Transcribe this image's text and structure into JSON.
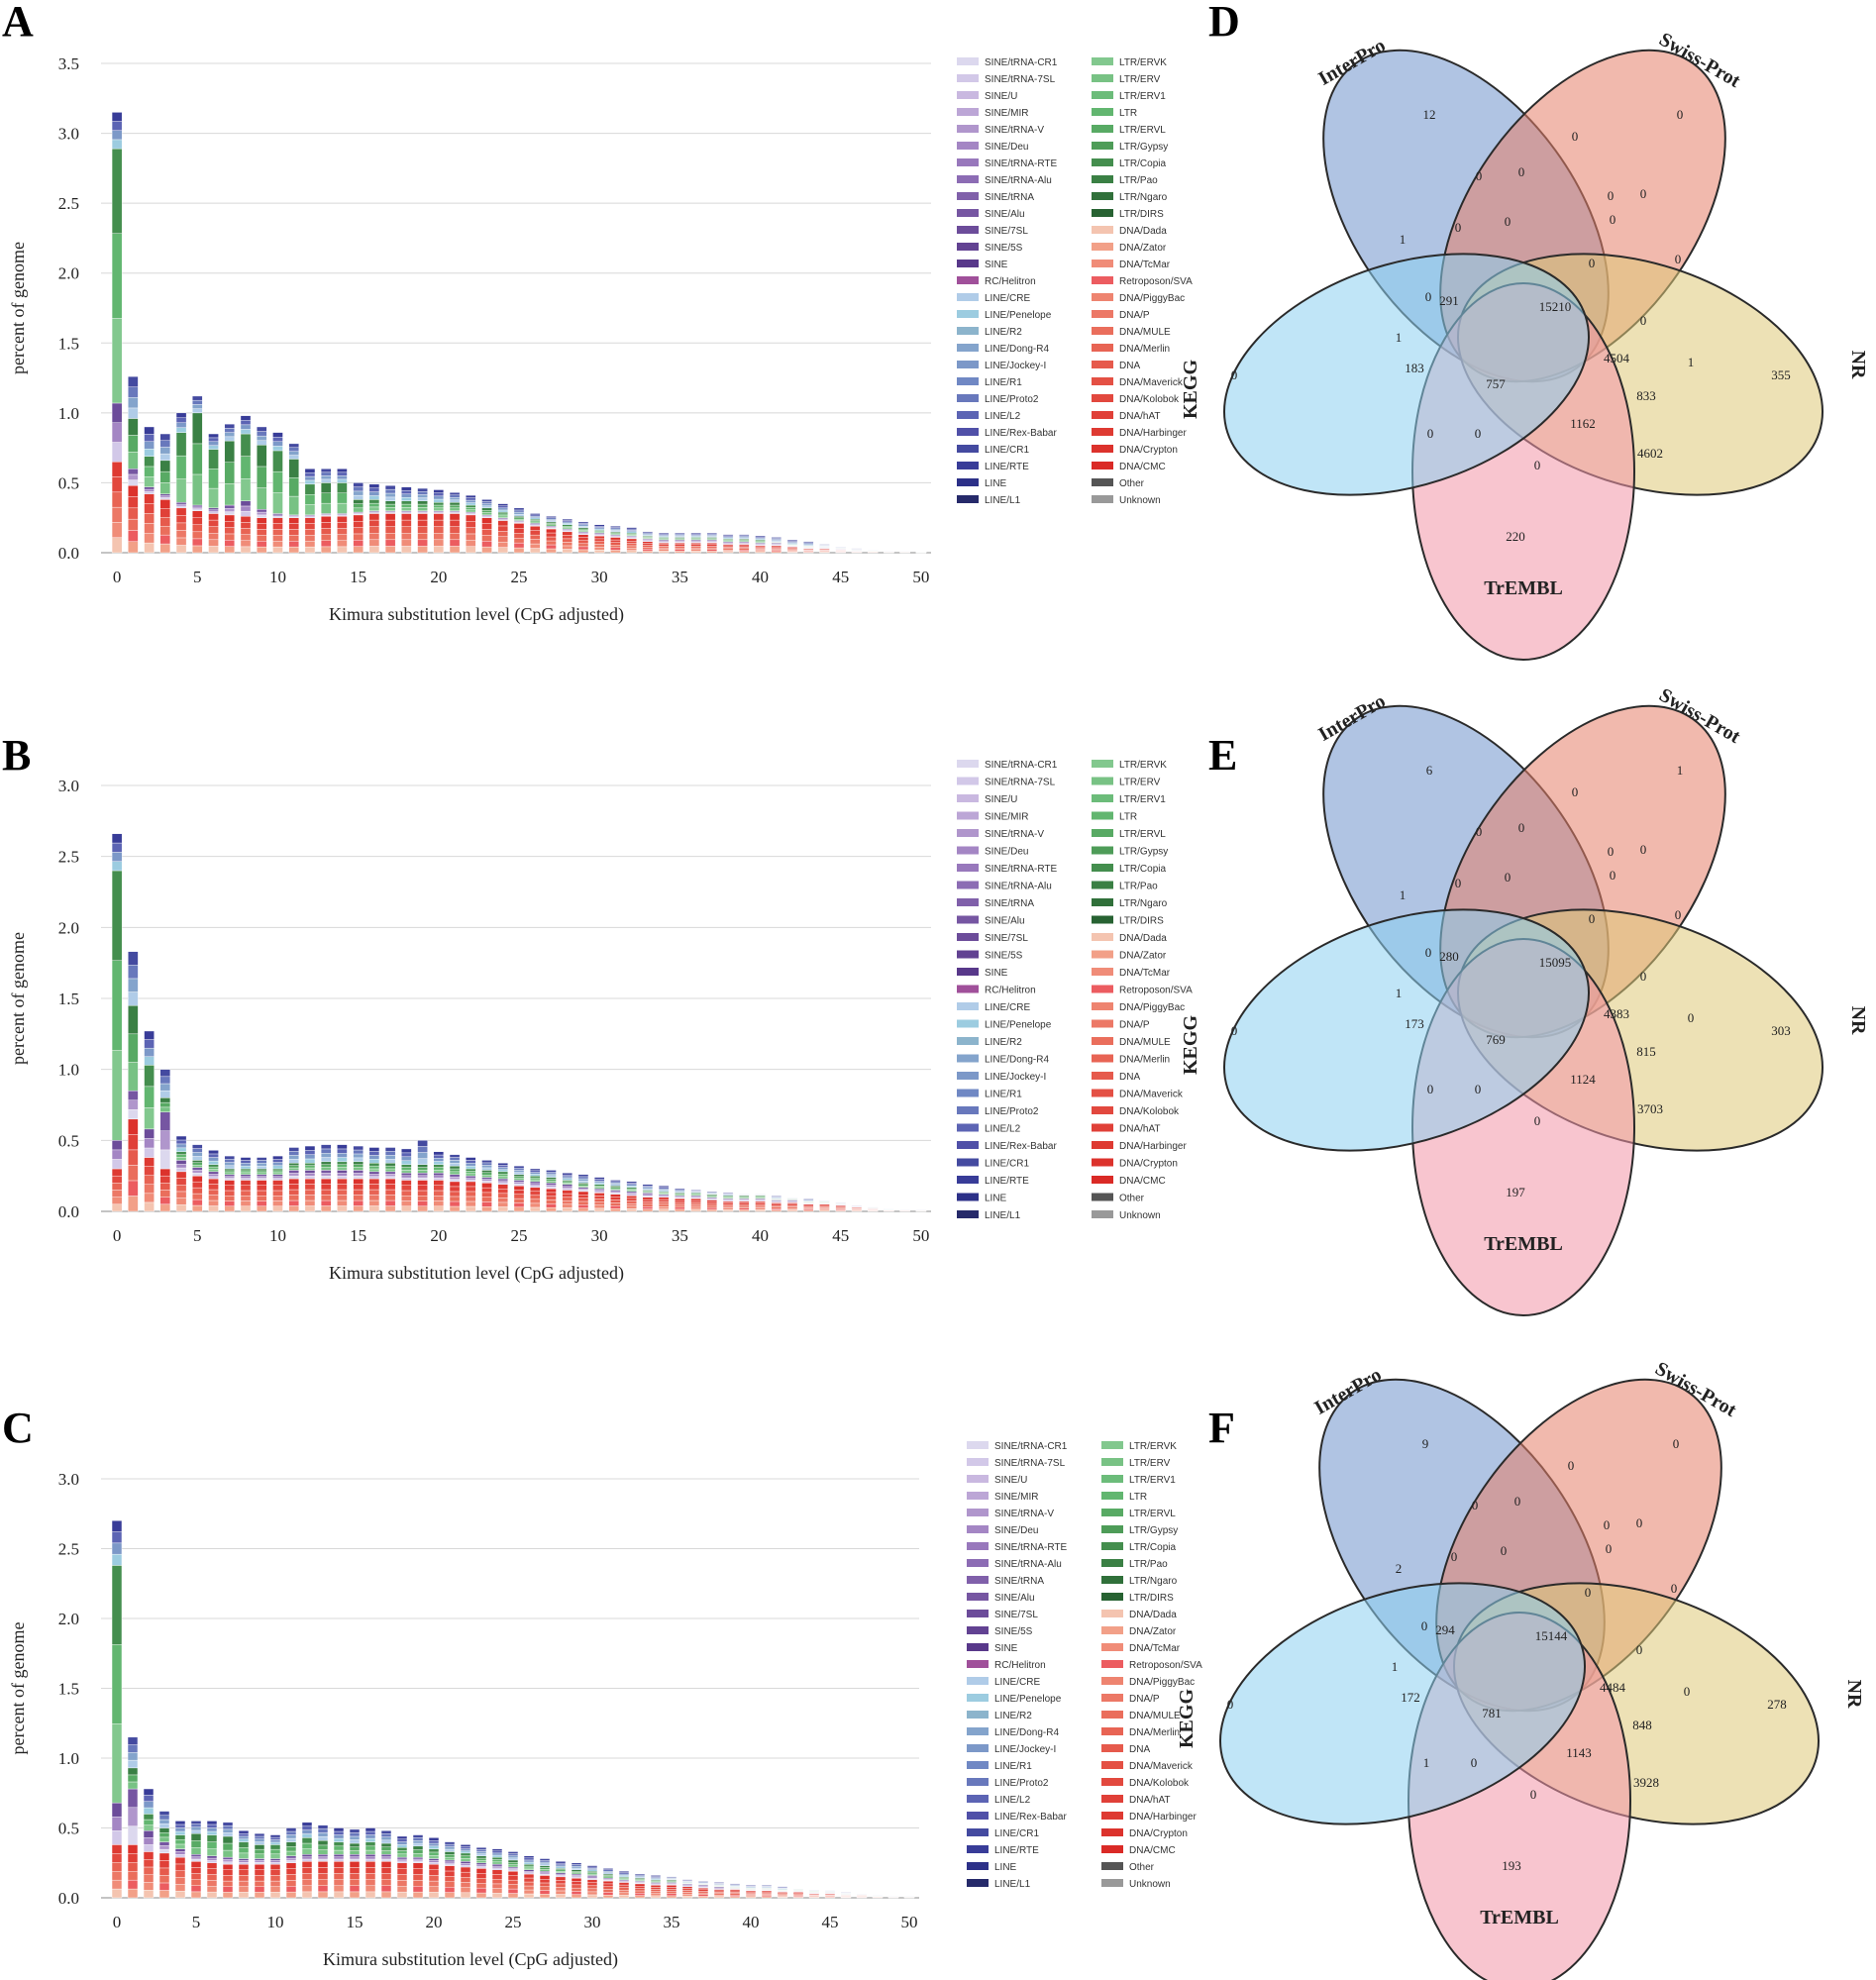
{
  "chart_data": [
    {
      "panel": "A",
      "type": "bar",
      "stacked": true,
      "ylabel": "percent of genome",
      "xlabel": "Kimura substitution level (CpG adjusted)",
      "ylim": [
        0,
        3.5
      ],
      "yticks": [
        "0.0",
        "0.5",
        "1.0",
        "1.5",
        "2.0",
        "2.5",
        "3.0",
        "3.5"
      ],
      "xticks": [
        "0",
        "5",
        "10",
        "15",
        "20",
        "25",
        "30",
        "35",
        "40",
        "45",
        "50"
      ],
      "totals": [
        3.15,
        1.26,
        0.9,
        0.85,
        1.0,
        1.12,
        0.85,
        0.92,
        0.98,
        0.9,
        0.86,
        0.78,
        0.6,
        0.6,
        0.6,
        0.5,
        0.49,
        0.48,
        0.47,
        0.46,
        0.45,
        0.43,
        0.41,
        0.38,
        0.35,
        0.32,
        0.28,
        0.26,
        0.24,
        0.22,
        0.2,
        0.19,
        0.18,
        0.15,
        0.14,
        0.14,
        0.14,
        0.14,
        0.13,
        0.13,
        0.12,
        0.11,
        0.09,
        0.08,
        0.06,
        0.04,
        0.03,
        0.02,
        0.01,
        0.01,
        0.005
      ],
      "dna": [
        0.65,
        0.48,
        0.42,
        0.38,
        0.32,
        0.3,
        0.28,
        0.27,
        0.26,
        0.25,
        0.25,
        0.25,
        0.25,
        0.26,
        0.26,
        0.27,
        0.28,
        0.28,
        0.28,
        0.28,
        0.28,
        0.28,
        0.27,
        0.25,
        0.23,
        0.21,
        0.19,
        0.17,
        0.15,
        0.13,
        0.12,
        0.11,
        0.1,
        0.08,
        0.07,
        0.07,
        0.07,
        0.07,
        0.06,
        0.06,
        0.05,
        0.05,
        0.04,
        0.03,
        0.03,
        0.02,
        0.01,
        0.01,
        0.005,
        0.005,
        0.002
      ],
      "sine": [
        0.42,
        0.12,
        0.05,
        0.04,
        0.04,
        0.04,
        0.04,
        0.07,
        0.11,
        0.06,
        0.03,
        0.02,
        0.02,
        0.02,
        0.02,
        0.02,
        0.02,
        0.02,
        0.02,
        0.02,
        0.02,
        0.02,
        0.02,
        0.02,
        0.02,
        0.02,
        0.02,
        0.02,
        0.02,
        0.02,
        0.02,
        0.02,
        0.02,
        0.02,
        0.02,
        0.02,
        0.02,
        0.02,
        0.02,
        0.02,
        0.02,
        0.02,
        0.01,
        0.01,
        0.01,
        0.01,
        0.005,
        0.003,
        0.002,
        0.002,
        0.001
      ],
      "ltr": [
        1.82,
        0.36,
        0.22,
        0.24,
        0.5,
        0.66,
        0.42,
        0.46,
        0.48,
        0.46,
        0.45,
        0.4,
        0.22,
        0.22,
        0.22,
        0.09,
        0.08,
        0.07,
        0.07,
        0.07,
        0.06,
        0.06,
        0.05,
        0.05,
        0.04,
        0.03,
        0.03,
        0.03,
        0.03,
        0.03,
        0.02,
        0.02,
        0.02,
        0.02,
        0.02,
        0.02,
        0.02,
        0.02,
        0.02,
        0.02,
        0.02,
        0.01,
        0.01,
        0.01,
        0.005,
        0.003,
        0.003,
        0.002,
        0.001,
        0.001,
        0.001
      ],
      "legend_left": [
        "SINE/tRNA-CR1",
        "SINE/tRNA-7SL",
        "SINE/U",
        "SINE/MIR",
        "SINE/tRNA-V",
        "SINE/Deu",
        "SINE/tRNA-RTE",
        "SINE/tRNA-Alu",
        "SINE/tRNA",
        "SINE/Alu",
        "SINE/7SL",
        "SINE/5S",
        "SINE",
        "RC/Helitron",
        "LINE/CRE",
        "LINE/Penelope",
        "LINE/R2",
        "LINE/Dong-R4",
        "LINE/Jockey-I",
        "LINE/R1",
        "LINE/Proto2",
        "LINE/L2",
        "LINE/Rex-Babar",
        "LINE/CR1",
        "LINE/RTE",
        "LINE",
        "LINE/L1"
      ],
      "legend_right": [
        "LTR/ERVK",
        "LTR/ERV",
        "LTR/ERV1",
        "LTR",
        "LTR/ERVL",
        "LTR/Gypsy",
        "LTR/Copia",
        "LTR/Pao",
        "LTR/Ngaro",
        "LTR/DIRS",
        "DNA/Dada",
        "DNA/Zator",
        "DNA/TcMar",
        "Retroposon/SVA",
        "DNA/PiggyBac",
        "DNA/P",
        "DNA/MULE",
        "DNA/Merlin",
        "DNA",
        "DNA/Maverick",
        "DNA/Kolobok",
        "DNA/hAT",
        "DNA/Harbinger",
        "DNA/Crypton",
        "DNA/CMC",
        "Other",
        "Unknown"
      ]
    },
    {
      "panel": "B",
      "type": "bar",
      "stacked": true,
      "ylabel": "percent of genome",
      "xlabel": "Kimura substitution level (CpG adjusted)",
      "ylim": [
        0,
        3.0
      ],
      "yticks": [
        "0.0",
        "0.5",
        "1.0",
        "1.5",
        "2.0",
        "2.5",
        "3.0"
      ],
      "xticks": [
        "0",
        "5",
        "10",
        "15",
        "20",
        "25",
        "30",
        "35",
        "40",
        "45",
        "50"
      ],
      "totals": [
        2.66,
        1.83,
        1.27,
        1.0,
        0.53,
        0.47,
        0.43,
        0.39,
        0.38,
        0.38,
        0.39,
        0.45,
        0.46,
        0.47,
        0.47,
        0.46,
        0.45,
        0.45,
        0.44,
        0.5,
        0.42,
        0.4,
        0.38,
        0.36,
        0.34,
        0.32,
        0.3,
        0.29,
        0.27,
        0.26,
        0.24,
        0.22,
        0.21,
        0.19,
        0.18,
        0.16,
        0.15,
        0.14,
        0.13,
        0.12,
        0.12,
        0.11,
        0.1,
        0.09,
        0.08,
        0.06,
        0.04,
        0.03,
        0.02,
        0.01,
        0.01
      ],
      "dna": [
        0.3,
        0.65,
        0.38,
        0.3,
        0.28,
        0.25,
        0.23,
        0.22,
        0.22,
        0.22,
        0.22,
        0.23,
        0.23,
        0.23,
        0.23,
        0.23,
        0.23,
        0.23,
        0.22,
        0.22,
        0.22,
        0.21,
        0.21,
        0.2,
        0.19,
        0.18,
        0.17,
        0.16,
        0.15,
        0.14,
        0.13,
        0.12,
        0.11,
        0.1,
        0.1,
        0.09,
        0.09,
        0.08,
        0.07,
        0.07,
        0.07,
        0.06,
        0.06,
        0.05,
        0.05,
        0.04,
        0.03,
        0.02,
        0.01,
        0.008,
        0.005
      ],
      "sine": [
        0.2,
        0.2,
        0.2,
        0.4,
        0.08,
        0.06,
        0.05,
        0.04,
        0.04,
        0.04,
        0.04,
        0.06,
        0.06,
        0.06,
        0.06,
        0.06,
        0.05,
        0.05,
        0.05,
        0.05,
        0.05,
        0.05,
        0.04,
        0.04,
        0.04,
        0.04,
        0.04,
        0.04,
        0.04,
        0.03,
        0.03,
        0.03,
        0.03,
        0.03,
        0.02,
        0.02,
        0.02,
        0.02,
        0.02,
        0.02,
        0.02,
        0.02,
        0.02,
        0.01,
        0.01,
        0.01,
        0.01,
        0.005,
        0.003,
        0.002,
        0.001
      ],
      "ltr": [
        1.9,
        0.6,
        0.45,
        0.1,
        0.06,
        0.05,
        0.05,
        0.04,
        0.04,
        0.04,
        0.04,
        0.05,
        0.05,
        0.06,
        0.06,
        0.06,
        0.06,
        0.06,
        0.06,
        0.06,
        0.06,
        0.06,
        0.05,
        0.05,
        0.05,
        0.04,
        0.04,
        0.04,
        0.03,
        0.03,
        0.03,
        0.03,
        0.03,
        0.02,
        0.02,
        0.02,
        0.02,
        0.02,
        0.02,
        0.02,
        0.02,
        0.01,
        0.01,
        0.01,
        0.01,
        0.005,
        0.005,
        0.003,
        0.002,
        0.001,
        0.001
      ],
      "legend_left": [
        "SINE/tRNA-CR1",
        "SINE/tRNA-7SL",
        "SINE/U",
        "SINE/MIR",
        "SINE/tRNA-V",
        "SINE/Deu",
        "SINE/tRNA-RTE",
        "SINE/tRNA-Alu",
        "SINE/tRNA",
        "SINE/Alu",
        "SINE/7SL",
        "SINE/5S",
        "SINE",
        "RC/Helitron",
        "LINE/CRE",
        "LINE/Penelope",
        "LINE/R2",
        "LINE/Dong-R4",
        "LINE/Jockey-I",
        "LINE/R1",
        "LINE/Proto2",
        "LINE/L2",
        "LINE/Rex-Babar",
        "LINE/CR1",
        "LINE/RTE",
        "LINE",
        "LINE/L1"
      ],
      "legend_right": [
        "LTR/ERVK",
        "LTR/ERV",
        "LTR/ERV1",
        "LTR",
        "LTR/ERVL",
        "LTR/Gypsy",
        "LTR/Copia",
        "LTR/Pao",
        "LTR/Ngaro",
        "LTR/DIRS",
        "DNA/Dada",
        "DNA/Zator",
        "DNA/TcMar",
        "Retroposon/SVA",
        "DNA/PiggyBac",
        "DNA/P",
        "DNA/MULE",
        "DNA/Merlin",
        "DNA",
        "DNA/Maverick",
        "DNA/Kolobok",
        "DNA/hAT",
        "DNA/Harbinger",
        "DNA/Crypton",
        "DNA/CMC",
        "Other",
        "Unknown"
      ]
    },
    {
      "panel": "C",
      "type": "bar",
      "stacked": true,
      "ylabel": "percent of genome",
      "xlabel": "Kimura substitution level (CpG adjusted)",
      "ylim": [
        0,
        3.0
      ],
      "yticks": [
        "0.0",
        "0.5",
        "1.0",
        "1.5",
        "2.0",
        "2.5",
        "3.0"
      ],
      "xticks": [
        "0",
        "5",
        "10",
        "15",
        "20",
        "25",
        "30",
        "35",
        "40",
        "45",
        "50"
      ],
      "totals": [
        2.7,
        1.15,
        0.78,
        0.62,
        0.55,
        0.55,
        0.55,
        0.54,
        0.48,
        0.46,
        0.45,
        0.5,
        0.54,
        0.52,
        0.5,
        0.49,
        0.5,
        0.48,
        0.44,
        0.45,
        0.43,
        0.4,
        0.38,
        0.36,
        0.35,
        0.33,
        0.3,
        0.28,
        0.26,
        0.25,
        0.23,
        0.21,
        0.19,
        0.17,
        0.16,
        0.15,
        0.13,
        0.12,
        0.11,
        0.1,
        0.09,
        0.09,
        0.08,
        0.07,
        0.06,
        0.05,
        0.04,
        0.03,
        0.02,
        0.01,
        0.01
      ],
      "dna": [
        0.38,
        0.38,
        0.33,
        0.32,
        0.29,
        0.26,
        0.25,
        0.24,
        0.24,
        0.24,
        0.24,
        0.25,
        0.26,
        0.26,
        0.26,
        0.26,
        0.26,
        0.26,
        0.25,
        0.25,
        0.24,
        0.23,
        0.22,
        0.21,
        0.2,
        0.19,
        0.17,
        0.16,
        0.15,
        0.14,
        0.13,
        0.12,
        0.11,
        0.1,
        0.09,
        0.09,
        0.08,
        0.07,
        0.06,
        0.06,
        0.05,
        0.05,
        0.04,
        0.04,
        0.03,
        0.03,
        0.02,
        0.02,
        0.01,
        0.005,
        0.005
      ],
      "sine": [
        0.3,
        0.4,
        0.15,
        0.08,
        0.06,
        0.05,
        0.05,
        0.05,
        0.04,
        0.04,
        0.04,
        0.05,
        0.05,
        0.05,
        0.05,
        0.05,
        0.05,
        0.05,
        0.04,
        0.04,
        0.04,
        0.04,
        0.04,
        0.04,
        0.04,
        0.03,
        0.03,
        0.03,
        0.03,
        0.03,
        0.03,
        0.02,
        0.02,
        0.02,
        0.02,
        0.02,
        0.02,
        0.02,
        0.02,
        0.01,
        0.01,
        0.01,
        0.01,
        0.01,
        0.01,
        0.01,
        0.005,
        0.005,
        0.003,
        0.002,
        0.001
      ],
      "ltr": [
        1.7,
        0.15,
        0.12,
        0.1,
        0.1,
        0.15,
        0.15,
        0.15,
        0.12,
        0.1,
        0.1,
        0.1,
        0.12,
        0.1,
        0.09,
        0.08,
        0.09,
        0.08,
        0.07,
        0.08,
        0.07,
        0.06,
        0.06,
        0.05,
        0.05,
        0.05,
        0.04,
        0.04,
        0.03,
        0.03,
        0.03,
        0.03,
        0.02,
        0.02,
        0.02,
        0.02,
        0.01,
        0.01,
        0.01,
        0.01,
        0.01,
        0.01,
        0.01,
        0.01,
        0.01,
        0.005,
        0.005,
        0.003,
        0.002,
        0.001,
        0.001
      ],
      "legend_left": [
        "SINE/tRNA-CR1",
        "SINE/tRNA-7SL",
        "SINE/U",
        "SINE/MIR",
        "SINE/tRNA-V",
        "SINE/Deu",
        "SINE/tRNA-RTE",
        "SINE/tRNA-Alu",
        "SINE/tRNA",
        "SINE/Alu",
        "SINE/7SL",
        "SINE/5S",
        "SINE",
        "RC/Helitron",
        "LINE/CRE",
        "LINE/Penelope",
        "LINE/R2",
        "LINE/Dong-R4",
        "LINE/Jockey-I",
        "LINE/R1",
        "LINE/Proto2",
        "LINE/L2",
        "LINE/Rex-Babar",
        "LINE/CR1",
        "LINE/RTE",
        "LINE",
        "LINE/L1"
      ],
      "legend_right": [
        "LTR/ERVK",
        "LTR/ERV",
        "LTR/ERV1",
        "LTR",
        "LTR/ERVL",
        "LTR/Gypsy",
        "LTR/Copia",
        "LTR/Pao",
        "LTR/Ngaro",
        "LTR/DIRS",
        "DNA/Dada",
        "DNA/Zator",
        "DNA/TcMar",
        "Retroposon/SVA",
        "DNA/PiggyBac",
        "DNA/P",
        "DNA/MULE",
        "DNA/Merlin",
        "DNA",
        "DNA/Maverick",
        "DNA/Kolobok",
        "DNA/hAT",
        "DNA/Harbinger",
        "DNA/Crypton",
        "DNA/CMC",
        "Other",
        "Unknown"
      ]
    }
  ],
  "colors": {
    "sine": [
      "#dcd8ee",
      "#d2c8e8",
      "#c9b8e0",
      "#bca6d6",
      "#b096cc",
      "#a486c4",
      "#9878bc",
      "#8c6cb4",
      "#8060aa",
      "#7656a2",
      "#6c4c9a",
      "#624292",
      "#58388a",
      "#a0509a"
    ],
    "line": [
      "#b0cce8",
      "#9ccce0",
      "#8cb4cc",
      "#84a4cc",
      "#7c98c8",
      "#7088c4",
      "#6878bc",
      "#5c64b4",
      "#5050a8",
      "#444aa0",
      "#383c98",
      "#2c3088",
      "#262a6a"
    ],
    "ltr": [
      "#82c88e",
      "#78c284",
      "#6cbc7a",
      "#62b670",
      "#58aa64",
      "#4e9c58",
      "#448e4e",
      "#3a8044",
      "#30703a",
      "#276232"
    ],
    "dna": [
      "#f4c4b0",
      "#f2a088",
      "#f08c78",
      "#ec5c60",
      "#ee8470",
      "#ec7866",
      "#ea6e5c",
      "#e86454",
      "#e65a4c",
      "#e45044",
      "#e2483e",
      "#e04038",
      "#de3a32",
      "#dc322c",
      "#da2a26",
      "#555555",
      "#999999"
    ],
    "venn_interpro": "#6f93cc",
    "venn_swissprot": "#e67f6a",
    "venn_nr": "#dfc878",
    "venn_trembl": "#f296a8",
    "venn_kegg": "#8cd0f0"
  },
  "venns": [
    {
      "panel": "D",
      "labels": {
        "interpro": "InterPro",
        "swissprot": "Swiss-Prot",
        "nr": "NR",
        "trembl": "TrEMBL",
        "kegg": "KEGG"
      },
      "counts": {
        "interpro_only": "12",
        "swissprot_only": "0",
        "nr_only": "355",
        "trembl_only": "220",
        "kegg_only": "0",
        "ip_sp": "0",
        "ip_sp_a": "0",
        "ip_sp_b": "0",
        "sp_mid_a": "0",
        "sp_mid_b": "0",
        "ip_kegg": "1",
        "ip_mid": "0",
        "ip_mid2": "0",
        "sp_nr": "0",
        "sp_nr2": "0",
        "mid_r": "0",
        "nr_mid": "0",
        "nr_tr": "1",
        "kegg_l1": "0",
        "kegg_l2": "1",
        "c291": "291",
        "center": "15210",
        "c183": "183",
        "c757": "757",
        "c4504": "4504",
        "c833": "833",
        "c1162": "1162",
        "kegg_tr": "0",
        "kegg_tr2": "0",
        "tr_low": "0",
        "c4602": "4602"
      }
    },
    {
      "panel": "E",
      "labels": {
        "interpro": "InterPro",
        "swissprot": "Swiss-Prot",
        "nr": "NR",
        "trembl": "TrEMBL",
        "kegg": "KEGG"
      },
      "counts": {
        "interpro_only": "6",
        "swissprot_only": "1",
        "nr_only": "303",
        "trembl_only": "197",
        "kegg_only": "0",
        "ip_sp": "0",
        "ip_sp_a": "0",
        "ip_sp_b": "0",
        "sp_mid_a": "0",
        "sp_mid_b": "0",
        "ip_kegg": "1",
        "ip_mid": "0",
        "ip_mid2": "0",
        "sp_nr": "0",
        "sp_nr2": "0",
        "mid_r": "0",
        "nr_mid": "0",
        "nr_tr": "0",
        "kegg_l1": "0",
        "kegg_l2": "1",
        "c291": "280",
        "center": "15095",
        "c183": "173",
        "c757": "769",
        "c4504": "4383",
        "c833": "815",
        "c1162": "1124",
        "kegg_tr": "0",
        "kegg_tr2": "0",
        "tr_low": "0",
        "c4602": "3703"
      }
    },
    {
      "panel": "F",
      "labels": {
        "interpro": "InterPro",
        "swissprot": "Swiss-Prot",
        "nr": "NR",
        "trembl": "TrEMBL",
        "kegg": "KEGG"
      },
      "counts": {
        "interpro_only": "9",
        "swissprot_only": "0",
        "nr_only": "278",
        "trembl_only": "193",
        "kegg_only": "0",
        "ip_sp": "0",
        "ip_sp_a": "0",
        "ip_sp_b": "0",
        "sp_mid_a": "0",
        "sp_mid_b": "0",
        "ip_kegg": "2",
        "ip_mid": "0",
        "ip_mid2": "0",
        "sp_nr": "0",
        "sp_nr2": "0",
        "mid_r": "0",
        "nr_mid": "0",
        "nr_tr": "0",
        "kegg_l1": "0",
        "kegg_l2": "1",
        "c291": "294",
        "center": "15144",
        "c183": "172",
        "c757": "781",
        "c4504": "4484",
        "c833": "848",
        "c1162": "1143",
        "kegg_tr": "1",
        "kegg_tr2": "0",
        "tr_low": "0",
        "c4602": "3928"
      }
    }
  ]
}
